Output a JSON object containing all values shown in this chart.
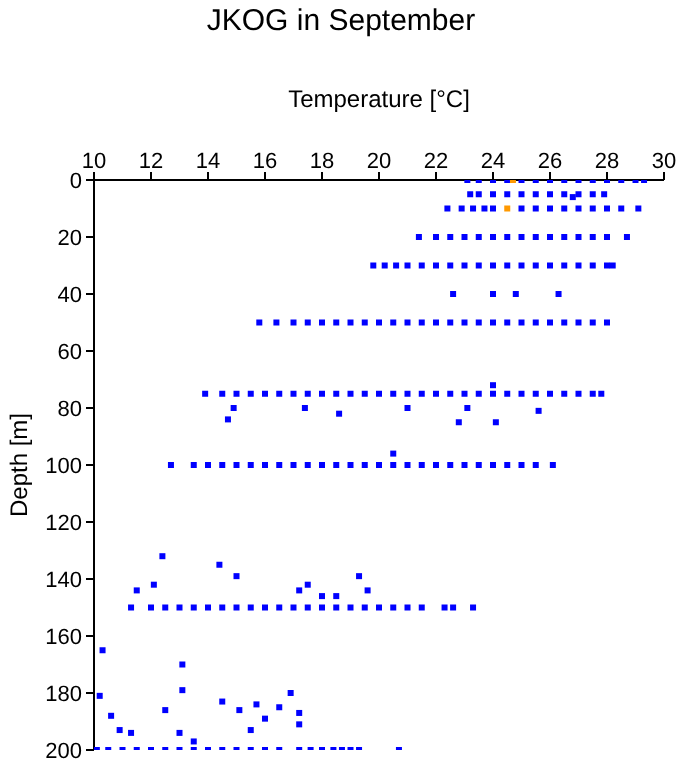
{
  "chart_data": {
    "type": "scatter",
    "title": "JKOG in September",
    "xlabel": "Temperature [°C]",
    "ylabel": "Depth [m]",
    "xlim": [
      10,
      30
    ],
    "xticks": [
      10,
      12,
      14,
      16,
      18,
      20,
      22,
      24,
      26,
      28,
      30
    ],
    "ylim": [
      200,
      0
    ],
    "yticks": [
      0,
      20,
      40,
      60,
      80,
      100,
      120,
      140,
      160,
      180,
      200
    ],
    "grid": false,
    "legend": false,
    "marker": "square",
    "series": [
      {
        "color": "#0000ff",
        "x": [
          23.1,
          23.5,
          24,
          24.5,
          25,
          25.5,
          26,
          26.5,
          27,
          27.5,
          28,
          28.5,
          29,
          29.3,
          23.2,
          23.5,
          24,
          24.5,
          25,
          25.5,
          26,
          26.5,
          27,
          27.5,
          27.9,
          26.8,
          22.4,
          22.9,
          23.3,
          23.7,
          24,
          24.5,
          25,
          25.5,
          26,
          26.5,
          27,
          27.5,
          28,
          28.5,
          29.1,
          21.4,
          22,
          22.5,
          23,
          23.5,
          24,
          24.5,
          25,
          25.5,
          26,
          26.5,
          27,
          27.5,
          28,
          28.7,
          19.8,
          20.2,
          20.6,
          21,
          21.5,
          22,
          22.5,
          23,
          23.5,
          24,
          24.5,
          25,
          25.5,
          26,
          26.5,
          27,
          27.5,
          28,
          28.2,
          22.6,
          24,
          24.8,
          26.3,
          15.8,
          16.4,
          17,
          17.5,
          18,
          18.5,
          19,
          19.5,
          20,
          20.5,
          21,
          21.5,
          22,
          22.5,
          23,
          23.5,
          24,
          24.5,
          25,
          25.5,
          26,
          26.5,
          27,
          27.5,
          28,
          13.9,
          14.5,
          15,
          15.5,
          16,
          16.5,
          17,
          17.5,
          18,
          18.5,
          19,
          19.5,
          20,
          20.5,
          21,
          21.5,
          22,
          22.5,
          23,
          23.5,
          24,
          24.5,
          25,
          25.5,
          26,
          26.5,
          27,
          27.5,
          27.8,
          14.7,
          17.4,
          18.6,
          21,
          22.8,
          23.1,
          24.1,
          24,
          25.6,
          20.5,
          14.9,
          12.7,
          13.5,
          14,
          14.5,
          15,
          15.5,
          16,
          16.5,
          17,
          17.5,
          18,
          18.5,
          19,
          19.5,
          20,
          20.5,
          21,
          21.5,
          22,
          22.5,
          23,
          23.5,
          24,
          24.5,
          25,
          25.5,
          26.1,
          11.3,
          12,
          12.5,
          13,
          13.5,
          14,
          14.5,
          15,
          15.5,
          16,
          16.5,
          17,
          17.5,
          18,
          18.5,
          19,
          19.5,
          20,
          20.5,
          21,
          21.5,
          22.3,
          22.6,
          23.3,
          12.4,
          14.4,
          15,
          12.1,
          11.5,
          19.3,
          17.5,
          17.2,
          18,
          18.5,
          19.6,
          10.1,
          10.5,
          11,
          11.5,
          12,
          12.5,
          13,
          13.5,
          14,
          14.5,
          15,
          15.5,
          16,
          16.5,
          17.2,
          17.6,
          18,
          18.4,
          18.7,
          19,
          19.3,
          20.7,
          10.3,
          10.2,
          13.1,
          13.1,
          10.6,
          10.9,
          12.5,
          11.3,
          14.5,
          15.1,
          15.7,
          16,
          16.5,
          16.9,
          17.2,
          17.2,
          15.5,
          13,
          13.5
        ],
        "values": [
          0,
          0,
          0,
          0,
          0,
          0,
          0,
          0,
          0,
          0,
          0,
          0,
          0,
          0,
          5,
          5,
          5,
          5,
          5,
          5,
          5,
          5,
          5,
          5,
          5,
          6,
          10,
          10,
          10,
          10,
          10,
          null,
          10,
          10,
          10,
          10,
          10,
          10,
          10,
          10,
          10,
          20,
          20,
          20,
          20,
          20,
          20,
          20,
          20,
          20,
          20,
          20,
          20,
          20,
          20,
          20,
          30,
          30,
          30,
          30,
          30,
          30,
          30,
          30,
          30,
          30,
          30,
          30,
          30,
          30,
          30,
          30,
          30,
          30,
          30,
          40,
          40,
          40,
          40,
          50,
          50,
          50,
          50,
          50,
          50,
          50,
          50,
          50,
          50,
          50,
          50,
          50,
          50,
          50,
          50,
          50,
          50,
          50,
          50,
          50,
          50,
          50,
          50,
          50,
          75,
          75,
          75,
          75,
          75,
          75,
          75,
          75,
          75,
          75,
          75,
          75,
          75,
          75,
          75,
          75,
          75,
          75,
          75,
          75,
          75,
          75,
          75,
          75,
          75,
          75,
          75,
          75,
          75,
          84,
          80,
          82,
          80,
          85,
          80,
          85,
          72,
          81,
          96,
          80,
          100,
          100,
          100,
          100,
          100,
          100,
          100,
          100,
          100,
          100,
          100,
          100,
          100,
          100,
          100,
          100,
          100,
          100,
          100,
          100,
          100,
          100,
          100,
          100,
          100,
          100,
          100,
          150,
          150,
          150,
          150,
          150,
          150,
          150,
          150,
          150,
          150,
          150,
          150,
          150,
          150,
          150,
          150,
          150,
          150,
          150,
          150,
          150,
          150,
          150,
          150,
          132,
          135,
          139,
          142,
          144,
          139,
          142,
          144,
          146,
          146,
          144,
          200,
          200,
          200,
          200,
          200,
          200,
          200,
          200,
          200,
          200,
          200,
          200,
          200,
          200,
          200,
          200,
          200,
          200,
          200,
          200,
          200,
          200,
          165,
          181,
          170,
          179,
          188,
          193,
          186,
          194,
          183,
          186,
          184,
          189,
          185,
          180,
          191,
          187,
          193,
          194,
          197
        ]
      },
      {
        "color": "#ff9900",
        "x": [
          24.7,
          24.5
        ],
        "values": [
          0,
          10
        ]
      }
    ]
  }
}
